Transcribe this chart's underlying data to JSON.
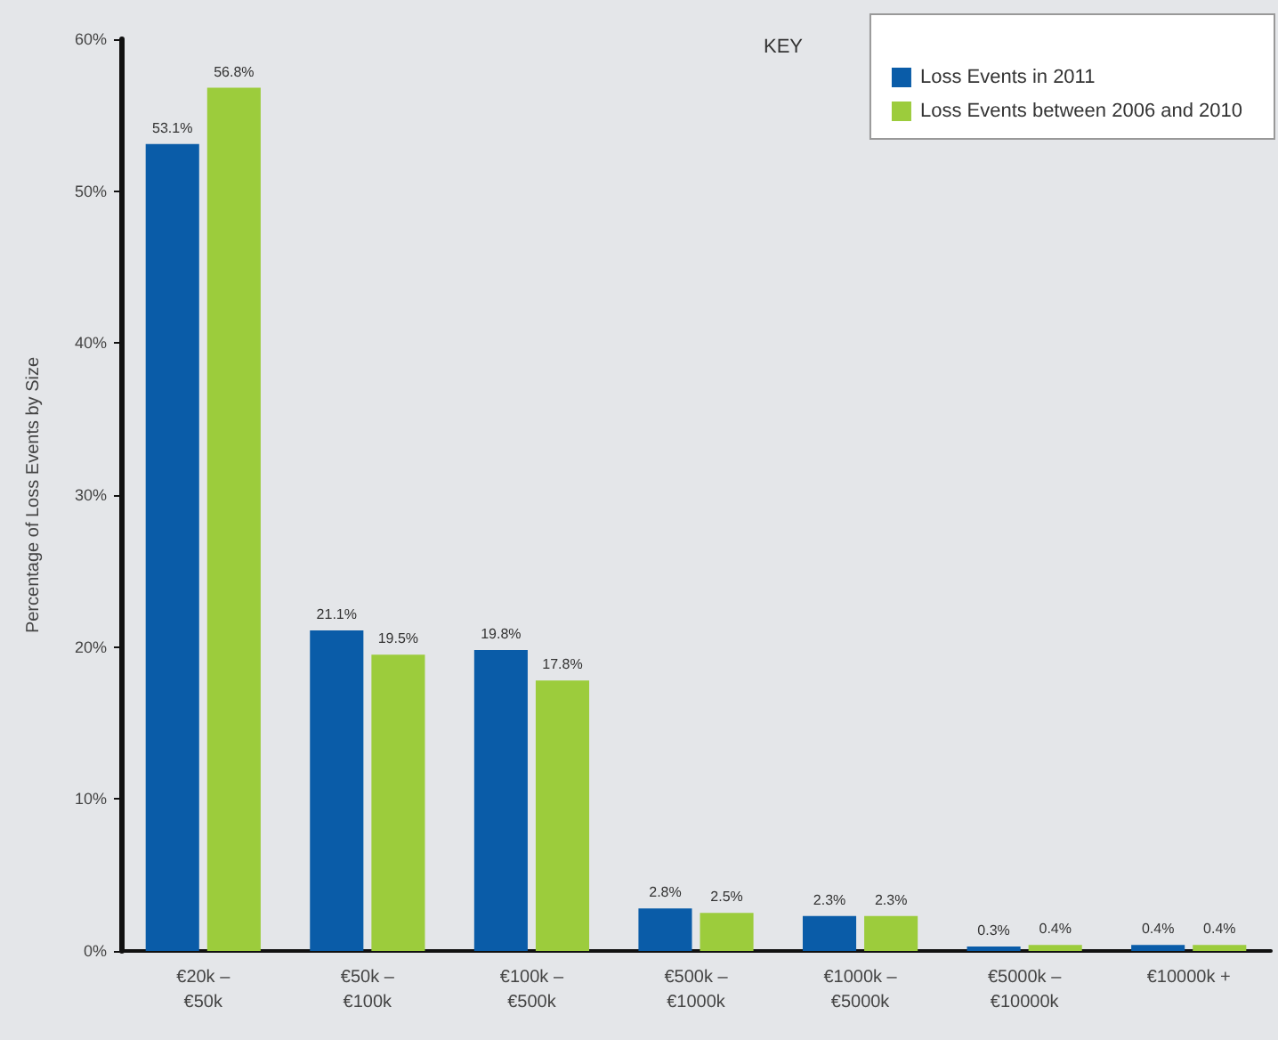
{
  "chart_data": {
    "type": "bar",
    "ylabel": "Percentage of Loss Events by Size",
    "legend_title": "KEY",
    "categories": [
      "€20k –\n€50k",
      "€50k –\n€100k",
      "€100k –\n€500k",
      "€500k –\n€1000k",
      "€1000k –\n€5000k",
      "€5000k –\n€10000k",
      "€10000k +"
    ],
    "series": [
      {
        "name": "Loss Events in 2011",
        "color": "#0a5ca8",
        "values": [
          53.1,
          21.1,
          19.8,
          2.8,
          2.3,
          0.3,
          0.4
        ],
        "value_labels": [
          "53.1%",
          "21.1%",
          "19.8%",
          "2.8%",
          "2.3%",
          "0.3%",
          "0.4%"
        ]
      },
      {
        "name": "Loss Events between 2006 and 2010",
        "color": "#9ccc3c",
        "values": [
          56.8,
          19.5,
          17.8,
          2.5,
          2.3,
          0.4,
          0.4
        ],
        "value_labels": [
          "56.8%",
          "19.5%",
          "17.8%",
          "2.5%",
          "2.3%",
          "0.4%",
          "0.4%"
        ]
      }
    ],
    "ylim": [
      0,
      60
    ],
    "yticks": [
      {
        "value": 0,
        "label": "0%"
      },
      {
        "value": 10,
        "label": "10%"
      },
      {
        "value": 20,
        "label": "20%"
      },
      {
        "value": 30,
        "label": "30%"
      },
      {
        "value": 40,
        "label": "40%"
      },
      {
        "value": 50,
        "label": "50%"
      },
      {
        "value": 60,
        "label": "60%"
      }
    ],
    "grid": false,
    "legend": "top right"
  }
}
